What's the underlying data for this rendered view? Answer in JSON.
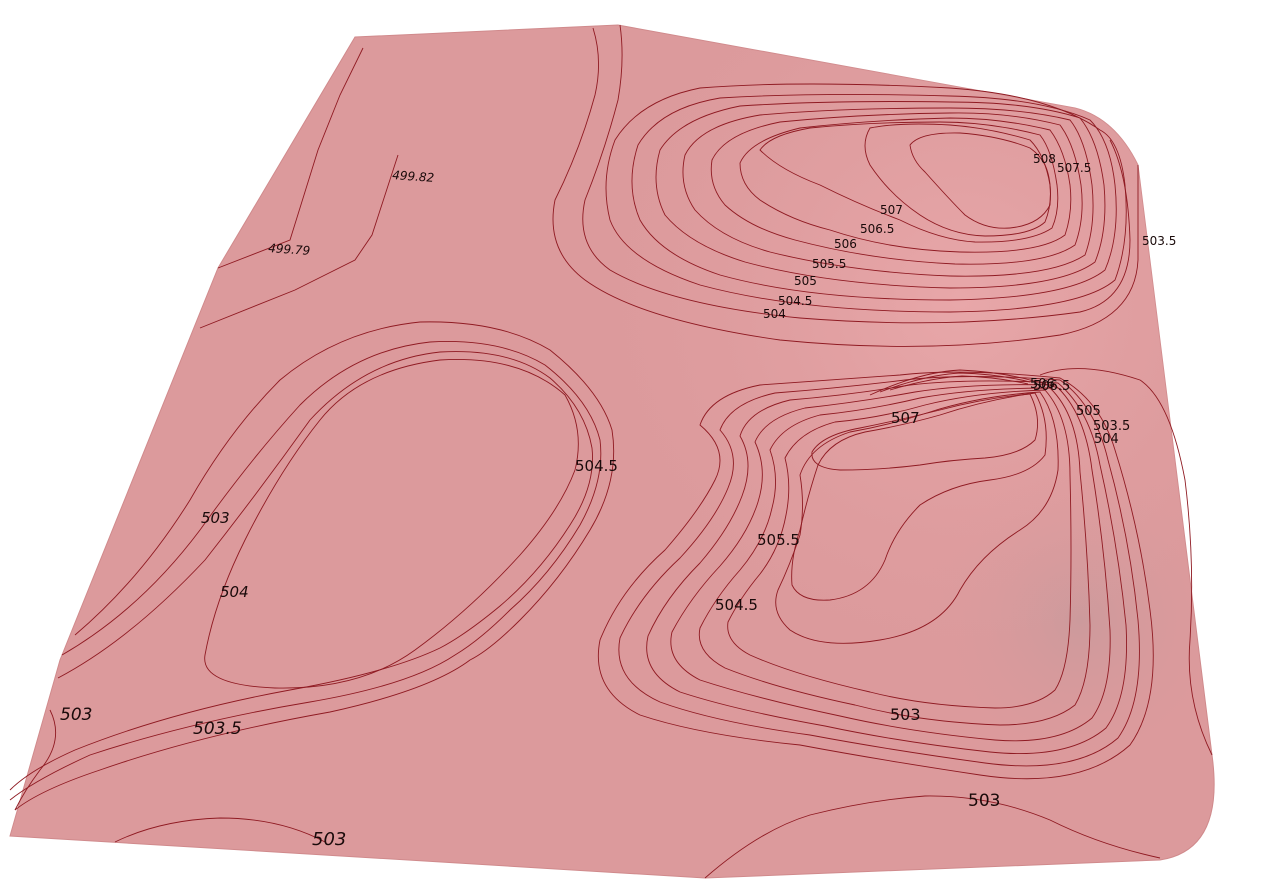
{
  "surface": {
    "fill_color": "#dc9a9c",
    "highlight_color": "#f0b0b2",
    "shade_color": "#c99a9c",
    "contour_color": "#8f1a22"
  },
  "contour_labels": {
    "l_499_82": "499.82",
    "l_499_79": "499.79",
    "ne_508": "508",
    "ne_507_5": "507.5",
    "ne_507": "507",
    "ne_506_5": "506.5",
    "ne_506": "506",
    "ne_505_5": "505.5",
    "ne_505": "505",
    "ne_504_5": "504.5",
    "ne_504": "504",
    "ne_503_5": "503.5",
    "w_504_5": "504.5",
    "w_503": "503",
    "w_504": "504",
    "sw_503": "503",
    "sw_503_5": "503.5",
    "s_503": "503",
    "se_506": "506",
    "se_506_5": "506.5",
    "se_505": "505",
    "se_503_5": "503.5",
    "se_504": "504",
    "se_507": "507",
    "se_505_5": "505.5",
    "se_504_5": "504.5",
    "se_503": "503",
    "se_503_b": "503"
  }
}
